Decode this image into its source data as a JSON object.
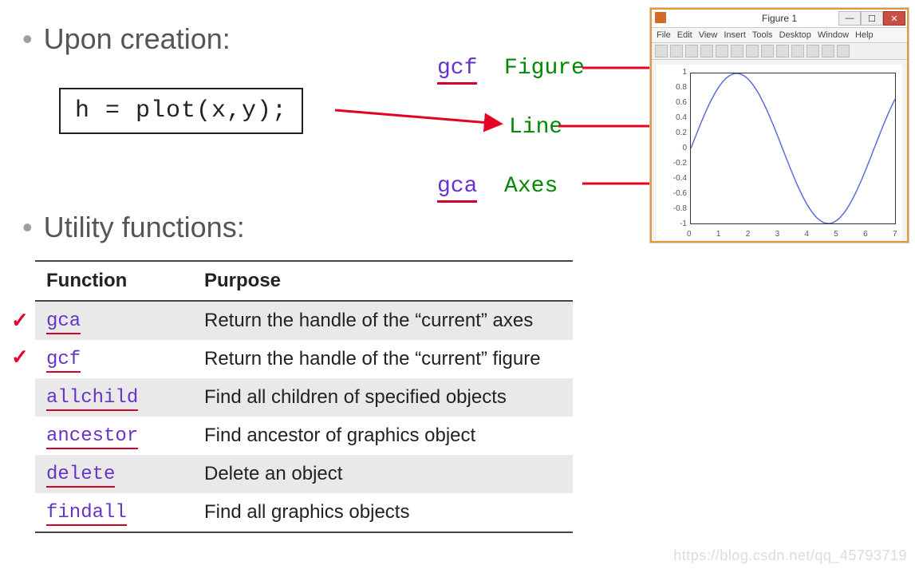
{
  "section1_title": "Upon creation:",
  "code": "h = plot(x,y);",
  "section2_title": "Utility functions:",
  "labels": {
    "gcf_code": "gcf",
    "gcf_name": "Figure",
    "gca_code": "gca",
    "gca_name": "Axes",
    "line_name": "Line"
  },
  "table": {
    "headers": {
      "fn": "Function",
      "purpose": "Purpose"
    },
    "rows": [
      {
        "fn": "gca",
        "purpose": "Return the handle of the “current” axes",
        "checked": true
      },
      {
        "fn": "gcf",
        "purpose": "Return the handle of the “current” figure",
        "checked": true
      },
      {
        "fn": "allchild",
        "purpose": "Find all children of specified objects",
        "checked": false
      },
      {
        "fn": "ancestor",
        "purpose": "Find ancestor of graphics object",
        "checked": false
      },
      {
        "fn": "delete",
        "purpose": "Delete an object",
        "checked": false
      },
      {
        "fn": "findall",
        "purpose": "Find all graphics objects",
        "checked": false
      }
    ]
  },
  "figwin": {
    "title": "Figure 1",
    "menus": [
      "File",
      "Edit",
      "View",
      "Insert",
      "Tools",
      "Desktop",
      "Window",
      "Help"
    ],
    "yticks": [
      -1,
      -0.8,
      -0.6,
      -0.4,
      -0.2,
      0,
      0.2,
      0.4,
      0.6,
      0.8,
      1
    ],
    "xticks": [
      0,
      1,
      2,
      3,
      4,
      5,
      6,
      7
    ],
    "ylim": [
      -1,
      1
    ],
    "xlim": [
      0,
      7
    ],
    "line_color": "#5b6dd8",
    "axis_color": "#333333",
    "background_color": "#ffffff"
  },
  "arrow_color": "#e60024",
  "watermark": "https://blog.csdn.net/qq_45793719"
}
